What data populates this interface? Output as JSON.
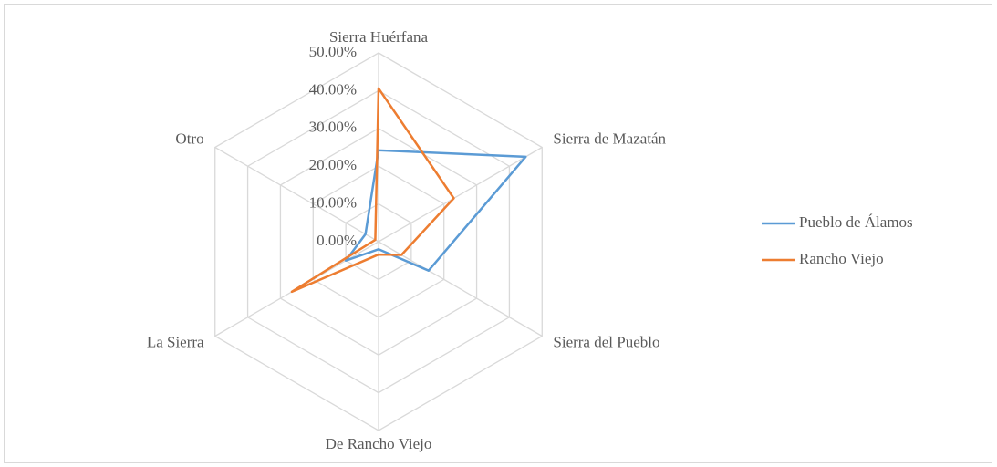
{
  "chart_data": {
    "type": "radar",
    "categories": [
      "Sierra Huérfana",
      "Sierra de Mazatán",
      "Sierra del Pueblo",
      "De Rancho Viejo",
      "La Sierra",
      "Otro"
    ],
    "series": [
      {
        "name": "Pueblo de Álamos",
        "color": "#5b9bd5",
        "values": [
          24.2,
          45,
          15.3,
          2,
          10,
          4
        ]
      },
      {
        "name": "Rancho Viejo",
        "color": "#ed7d31",
        "values": [
          40.6,
          23,
          7,
          3.4,
          26.5,
          1
        ]
      }
    ],
    "ylim": [
      0,
      50
    ],
    "yticks": [
      {
        "value": 0,
        "label": "0.00%"
      },
      {
        "value": 10,
        "label": "10.00%"
      },
      {
        "value": 20,
        "label": "20.00%"
      },
      {
        "value": 30,
        "label": "30.00%"
      },
      {
        "value": 40,
        "label": "40.00%"
      },
      {
        "value": 50,
        "label": "50.00%"
      }
    ],
    "grid": true,
    "legend": "right"
  }
}
